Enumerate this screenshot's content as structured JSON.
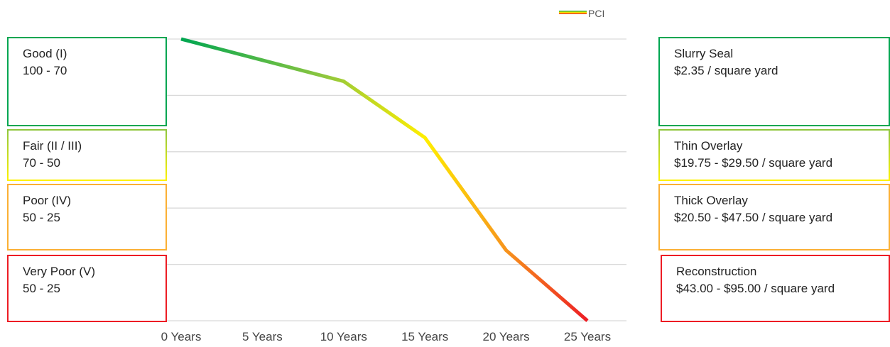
{
  "chart_data": {
    "type": "line",
    "x": [
      "0 Years",
      "5 Years",
      "10 Years",
      "15 Years",
      "20 Years",
      "25 Years"
    ],
    "series": [
      {
        "name": "PCI",
        "values": [
          100,
          92.5,
          85,
          65,
          25,
          0
        ]
      }
    ],
    "ylim": [
      0,
      100
    ],
    "grid": true,
    "legend": "top-right",
    "line_gradient": [
      "#00a651",
      "#8dc63f",
      "#ffee00",
      "#f7941d",
      "#ed1c24"
    ]
  },
  "condition_bands": [
    {
      "name": "Good (I)",
      "range": "100 - 70",
      "color": "#00a651"
    },
    {
      "name": "Fair (II / III)",
      "range": "70 - 50",
      "color": "#8dc63f",
      "color2": "#fff200"
    },
    {
      "name": "Poor (IV)",
      "range": "50 - 25",
      "color": "#fbb034"
    },
    {
      "name": "Very Poor (V)",
      "range": "50 - 25",
      "color": "#ed1c24"
    }
  ],
  "treatments": [
    {
      "name": "Slurry Seal",
      "cost": "$2.35 / square yard",
      "color": "#00a651"
    },
    {
      "name": "Thin Overlay",
      "cost": "$19.75 - $29.50 / square yard",
      "color": "#8dc63f",
      "color2": "#fff200"
    },
    {
      "name": "Thick Overlay",
      "cost": "$20.50 - $47.50 / square yard",
      "color": "#fbb034"
    },
    {
      "name": "Reconstruction",
      "cost": "$43.00 - $95.00 / square yard",
      "color": "#ed1c24"
    }
  ]
}
